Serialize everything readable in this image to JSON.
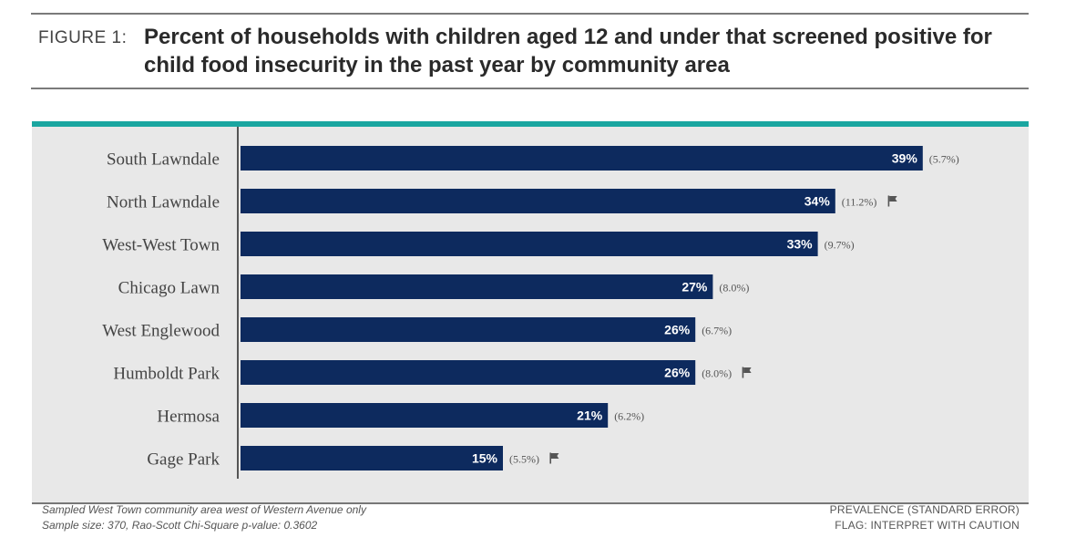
{
  "header": {
    "figure_label": "FIGURE 1:",
    "title": "Percent of households with children aged 12 and under that screened positive for child food insecurity in the past year by community area"
  },
  "colors": {
    "bar": "#0d2a5e",
    "accent": "#1aa6a0",
    "panel_bg": "#e8e8e8",
    "flag": "#555555"
  },
  "chart_data": {
    "type": "bar",
    "orientation": "horizontal",
    "categories": [
      "South Lawndale",
      "North Lawndale",
      "West-West Town",
      "Chicago Lawn",
      "West Englewood",
      "Humboldt Park",
      "Hermosa",
      "Gage Park"
    ],
    "values": [
      39,
      34,
      33,
      27,
      26,
      26,
      21,
      15
    ],
    "value_labels": [
      "39%",
      "34%",
      "33%",
      "27%",
      "26%",
      "26%",
      "21%",
      "15%"
    ],
    "standard_errors": [
      "(5.7%)",
      "(11.2%)",
      "(9.7%)",
      "(8.0%)",
      "(6.7%)",
      "(8.0%)",
      "(6.2%)",
      "(5.5%)"
    ],
    "flagged": [
      false,
      true,
      false,
      false,
      false,
      true,
      false,
      true
    ],
    "unit": "%",
    "xlim": [
      0,
      40
    ],
    "grid": false,
    "legend": "none"
  },
  "footer": {
    "note_1": "Sampled West Town community area west of Western Avenue only",
    "note_2": "Sample size: 370, Rao-Scott Chi-Square p-value: 0.3602",
    "key_1": "PREVALENCE (STANDARD ERROR)",
    "key_2": "FLAG: INTERPRET WITH CAUTION"
  }
}
